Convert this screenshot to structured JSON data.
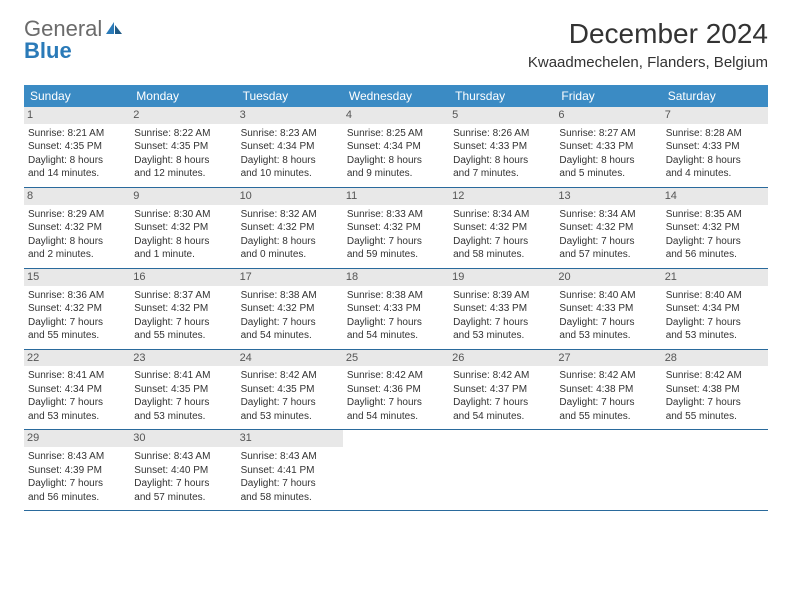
{
  "brand": {
    "general": "General",
    "blue": "Blue"
  },
  "title": "December 2024",
  "location": "Kwaadmechelen, Flanders, Belgium",
  "colors": {
    "header_bg": "#3b8bc4",
    "header_text": "#ffffff",
    "week_border": "#2a6a9c",
    "daynum_bg": "#e8e8e8",
    "text": "#333333"
  },
  "day_headers": [
    "Sunday",
    "Monday",
    "Tuesday",
    "Wednesday",
    "Thursday",
    "Friday",
    "Saturday"
  ],
  "weeks": [
    [
      {
        "n": "1",
        "sr": "Sunrise: 8:21 AM",
        "ss": "Sunset: 4:35 PM",
        "d1": "Daylight: 8 hours",
        "d2": "and 14 minutes."
      },
      {
        "n": "2",
        "sr": "Sunrise: 8:22 AM",
        "ss": "Sunset: 4:35 PM",
        "d1": "Daylight: 8 hours",
        "d2": "and 12 minutes."
      },
      {
        "n": "3",
        "sr": "Sunrise: 8:23 AM",
        "ss": "Sunset: 4:34 PM",
        "d1": "Daylight: 8 hours",
        "d2": "and 10 minutes."
      },
      {
        "n": "4",
        "sr": "Sunrise: 8:25 AM",
        "ss": "Sunset: 4:34 PM",
        "d1": "Daylight: 8 hours",
        "d2": "and 9 minutes."
      },
      {
        "n": "5",
        "sr": "Sunrise: 8:26 AM",
        "ss": "Sunset: 4:33 PM",
        "d1": "Daylight: 8 hours",
        "d2": "and 7 minutes."
      },
      {
        "n": "6",
        "sr": "Sunrise: 8:27 AM",
        "ss": "Sunset: 4:33 PM",
        "d1": "Daylight: 8 hours",
        "d2": "and 5 minutes."
      },
      {
        "n": "7",
        "sr": "Sunrise: 8:28 AM",
        "ss": "Sunset: 4:33 PM",
        "d1": "Daylight: 8 hours",
        "d2": "and 4 minutes."
      }
    ],
    [
      {
        "n": "8",
        "sr": "Sunrise: 8:29 AM",
        "ss": "Sunset: 4:32 PM",
        "d1": "Daylight: 8 hours",
        "d2": "and 2 minutes."
      },
      {
        "n": "9",
        "sr": "Sunrise: 8:30 AM",
        "ss": "Sunset: 4:32 PM",
        "d1": "Daylight: 8 hours",
        "d2": "and 1 minute."
      },
      {
        "n": "10",
        "sr": "Sunrise: 8:32 AM",
        "ss": "Sunset: 4:32 PM",
        "d1": "Daylight: 8 hours",
        "d2": "and 0 minutes."
      },
      {
        "n": "11",
        "sr": "Sunrise: 8:33 AM",
        "ss": "Sunset: 4:32 PM",
        "d1": "Daylight: 7 hours",
        "d2": "and 59 minutes."
      },
      {
        "n": "12",
        "sr": "Sunrise: 8:34 AM",
        "ss": "Sunset: 4:32 PM",
        "d1": "Daylight: 7 hours",
        "d2": "and 58 minutes."
      },
      {
        "n": "13",
        "sr": "Sunrise: 8:34 AM",
        "ss": "Sunset: 4:32 PM",
        "d1": "Daylight: 7 hours",
        "d2": "and 57 minutes."
      },
      {
        "n": "14",
        "sr": "Sunrise: 8:35 AM",
        "ss": "Sunset: 4:32 PM",
        "d1": "Daylight: 7 hours",
        "d2": "and 56 minutes."
      }
    ],
    [
      {
        "n": "15",
        "sr": "Sunrise: 8:36 AM",
        "ss": "Sunset: 4:32 PM",
        "d1": "Daylight: 7 hours",
        "d2": "and 55 minutes."
      },
      {
        "n": "16",
        "sr": "Sunrise: 8:37 AM",
        "ss": "Sunset: 4:32 PM",
        "d1": "Daylight: 7 hours",
        "d2": "and 55 minutes."
      },
      {
        "n": "17",
        "sr": "Sunrise: 8:38 AM",
        "ss": "Sunset: 4:32 PM",
        "d1": "Daylight: 7 hours",
        "d2": "and 54 minutes."
      },
      {
        "n": "18",
        "sr": "Sunrise: 8:38 AM",
        "ss": "Sunset: 4:33 PM",
        "d1": "Daylight: 7 hours",
        "d2": "and 54 minutes."
      },
      {
        "n": "19",
        "sr": "Sunrise: 8:39 AM",
        "ss": "Sunset: 4:33 PM",
        "d1": "Daylight: 7 hours",
        "d2": "and 53 minutes."
      },
      {
        "n": "20",
        "sr": "Sunrise: 8:40 AM",
        "ss": "Sunset: 4:33 PM",
        "d1": "Daylight: 7 hours",
        "d2": "and 53 minutes."
      },
      {
        "n": "21",
        "sr": "Sunrise: 8:40 AM",
        "ss": "Sunset: 4:34 PM",
        "d1": "Daylight: 7 hours",
        "d2": "and 53 minutes."
      }
    ],
    [
      {
        "n": "22",
        "sr": "Sunrise: 8:41 AM",
        "ss": "Sunset: 4:34 PM",
        "d1": "Daylight: 7 hours",
        "d2": "and 53 minutes."
      },
      {
        "n": "23",
        "sr": "Sunrise: 8:41 AM",
        "ss": "Sunset: 4:35 PM",
        "d1": "Daylight: 7 hours",
        "d2": "and 53 minutes."
      },
      {
        "n": "24",
        "sr": "Sunrise: 8:42 AM",
        "ss": "Sunset: 4:35 PM",
        "d1": "Daylight: 7 hours",
        "d2": "and 53 minutes."
      },
      {
        "n": "25",
        "sr": "Sunrise: 8:42 AM",
        "ss": "Sunset: 4:36 PM",
        "d1": "Daylight: 7 hours",
        "d2": "and 54 minutes."
      },
      {
        "n": "26",
        "sr": "Sunrise: 8:42 AM",
        "ss": "Sunset: 4:37 PM",
        "d1": "Daylight: 7 hours",
        "d2": "and 54 minutes."
      },
      {
        "n": "27",
        "sr": "Sunrise: 8:42 AM",
        "ss": "Sunset: 4:38 PM",
        "d1": "Daylight: 7 hours",
        "d2": "and 55 minutes."
      },
      {
        "n": "28",
        "sr": "Sunrise: 8:42 AM",
        "ss": "Sunset: 4:38 PM",
        "d1": "Daylight: 7 hours",
        "d2": "and 55 minutes."
      }
    ],
    [
      {
        "n": "29",
        "sr": "Sunrise: 8:43 AM",
        "ss": "Sunset: 4:39 PM",
        "d1": "Daylight: 7 hours",
        "d2": "and 56 minutes."
      },
      {
        "n": "30",
        "sr": "Sunrise: 8:43 AM",
        "ss": "Sunset: 4:40 PM",
        "d1": "Daylight: 7 hours",
        "d2": "and 57 minutes."
      },
      {
        "n": "31",
        "sr": "Sunrise: 8:43 AM",
        "ss": "Sunset: 4:41 PM",
        "d1": "Daylight: 7 hours",
        "d2": "and 58 minutes."
      },
      null,
      null,
      null,
      null
    ]
  ]
}
